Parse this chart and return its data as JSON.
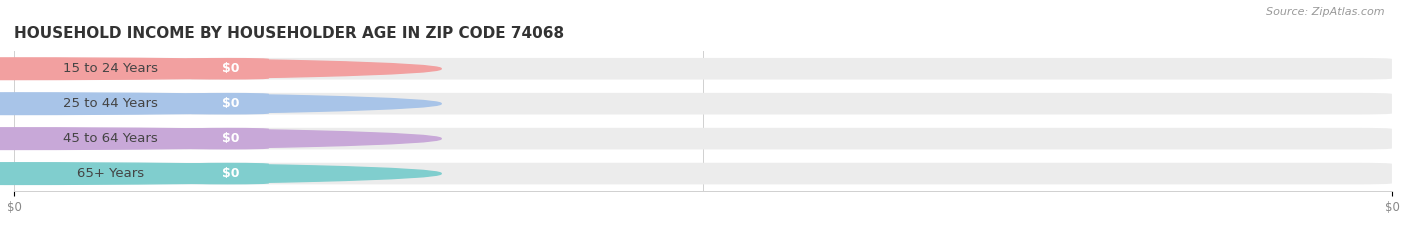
{
  "title": "HOUSEHOLD INCOME BY HOUSEHOLDER AGE IN ZIP CODE 74068",
  "source": "Source: ZipAtlas.com",
  "categories": [
    "15 to 24 Years",
    "25 to 44 Years",
    "45 to 64 Years",
    "65+ Years"
  ],
  "values": [
    0,
    0,
    0,
    0
  ],
  "bar_colors": [
    "#f2a0a0",
    "#a8c4e8",
    "#c8a8d8",
    "#80cece"
  ],
  "value_labels": [
    "$0",
    "$0",
    "$0",
    "$0"
  ],
  "x_tick_labels": [
    "$0",
    "$0"
  ],
  "title_fontsize": 11,
  "source_fontsize": 8,
  "label_fontsize": 9.5,
  "value_fontsize": 9,
  "background_color": "#ffffff",
  "row_bg_color": "#ececec",
  "white_pill_color": "#ffffff",
  "label_text_color": "#444444",
  "value_text_color": "#ffffff",
  "tick_color": "#888888",
  "source_color": "#999999",
  "title_color": "#333333",
  "grid_color": "#d0d0d0"
}
